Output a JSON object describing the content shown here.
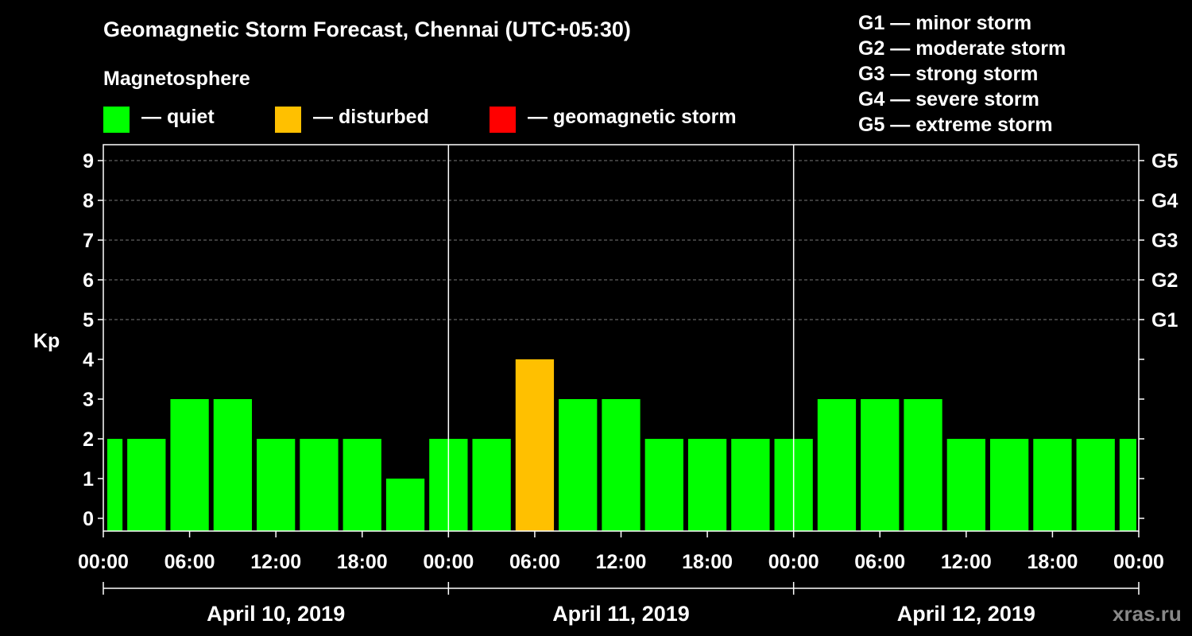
{
  "title": "Geomagnetic Storm Forecast, Chennai (UTC+05:30)",
  "magnetosphere_label": "Magnetosphere",
  "legend": [
    {
      "label": "— quiet",
      "color": "#00ff00"
    },
    {
      "label": "— disturbed",
      "color": "#ffc000"
    },
    {
      "label": "— geomagnetic storm",
      "color": "#ff0000"
    }
  ],
  "storm_legend": [
    "G1 — minor storm",
    "G2 — moderate storm",
    "G3 — strong storm",
    "G4 — severe storm",
    "G5 — extreme storm"
  ],
  "watermark": "xras.ru",
  "chart_data": {
    "type": "bar",
    "title": "Geomagnetic Storm Forecast, Chennai (UTC+05:30)",
    "ylabel": "Kp",
    "xlabel": "",
    "ylim": [
      0,
      9
    ],
    "y_ticks": [
      0,
      1,
      2,
      3,
      4,
      5,
      6,
      7,
      8,
      9
    ],
    "right_axis_labels": [
      {
        "kp": 5,
        "label": "G1"
      },
      {
        "kp": 6,
        "label": "G2"
      },
      {
        "kp": 7,
        "label": "G3"
      },
      {
        "kp": 8,
        "label": "G4"
      },
      {
        "kp": 9,
        "label": "G5"
      }
    ],
    "x_range_hours": [
      0,
      72
    ],
    "x_tick_hours": [
      0,
      6,
      12,
      18,
      24,
      30,
      36,
      42,
      48,
      54,
      60,
      66,
      72
    ],
    "x_tick_labels": [
      "00:00",
      "06:00",
      "12:00",
      "18:00",
      "00:00",
      "06:00",
      "12:00",
      "18:00",
      "00:00",
      "06:00",
      "12:00",
      "18:00",
      "00:00"
    ],
    "day_separator_hours": [
      24,
      48
    ],
    "days": [
      {
        "label": "April 10, 2019",
        "start_hour": 0,
        "end_hour": 24
      },
      {
        "label": "April 11, 2019",
        "start_hour": 24,
        "end_hour": 48
      },
      {
        "label": "April 12, 2019",
        "start_hour": 48,
        "end_hour": 72
      }
    ],
    "bars": [
      {
        "start_hour": 0,
        "end_hour": 1.5,
        "kp": 2,
        "level": "quiet"
      },
      {
        "start_hour": 1.5,
        "end_hour": 4.5,
        "kp": 2,
        "level": "quiet"
      },
      {
        "start_hour": 4.5,
        "end_hour": 7.5,
        "kp": 3,
        "level": "quiet"
      },
      {
        "start_hour": 7.5,
        "end_hour": 10.5,
        "kp": 3,
        "level": "quiet"
      },
      {
        "start_hour": 10.5,
        "end_hour": 13.5,
        "kp": 2,
        "level": "quiet"
      },
      {
        "start_hour": 13.5,
        "end_hour": 16.5,
        "kp": 2,
        "level": "quiet"
      },
      {
        "start_hour": 16.5,
        "end_hour": 19.5,
        "kp": 2,
        "level": "quiet"
      },
      {
        "start_hour": 19.5,
        "end_hour": 22.5,
        "kp": 1,
        "level": "quiet"
      },
      {
        "start_hour": 22.5,
        "end_hour": 25.5,
        "kp": 2,
        "level": "quiet"
      },
      {
        "start_hour": 25.5,
        "end_hour": 28.5,
        "kp": 2,
        "level": "quiet"
      },
      {
        "start_hour": 28.5,
        "end_hour": 31.5,
        "kp": 4,
        "level": "disturbed"
      },
      {
        "start_hour": 31.5,
        "end_hour": 34.5,
        "kp": 3,
        "level": "quiet"
      },
      {
        "start_hour": 34.5,
        "end_hour": 37.5,
        "kp": 3,
        "level": "quiet"
      },
      {
        "start_hour": 37.5,
        "end_hour": 40.5,
        "kp": 2,
        "level": "quiet"
      },
      {
        "start_hour": 40.5,
        "end_hour": 43.5,
        "kp": 2,
        "level": "quiet"
      },
      {
        "start_hour": 43.5,
        "end_hour": 46.5,
        "kp": 2,
        "level": "quiet"
      },
      {
        "start_hour": 46.5,
        "end_hour": 49.5,
        "kp": 2,
        "level": "quiet"
      },
      {
        "start_hour": 49.5,
        "end_hour": 52.5,
        "kp": 3,
        "level": "quiet"
      },
      {
        "start_hour": 52.5,
        "end_hour": 55.5,
        "kp": 3,
        "level": "quiet"
      },
      {
        "start_hour": 55.5,
        "end_hour": 58.5,
        "kp": 3,
        "level": "quiet"
      },
      {
        "start_hour": 58.5,
        "end_hour": 61.5,
        "kp": 2,
        "level": "quiet"
      },
      {
        "start_hour": 61.5,
        "end_hour": 64.5,
        "kp": 2,
        "level": "quiet"
      },
      {
        "start_hour": 64.5,
        "end_hour": 67.5,
        "kp": 2,
        "level": "quiet"
      },
      {
        "start_hour": 67.5,
        "end_hour": 70.5,
        "kp": 2,
        "level": "quiet"
      },
      {
        "start_hour": 70.5,
        "end_hour": 72,
        "kp": 2,
        "level": "quiet"
      }
    ],
    "level_colors": {
      "quiet": "#00ff00",
      "disturbed": "#ffc000",
      "storm": "#ff0000"
    },
    "grid": true
  }
}
